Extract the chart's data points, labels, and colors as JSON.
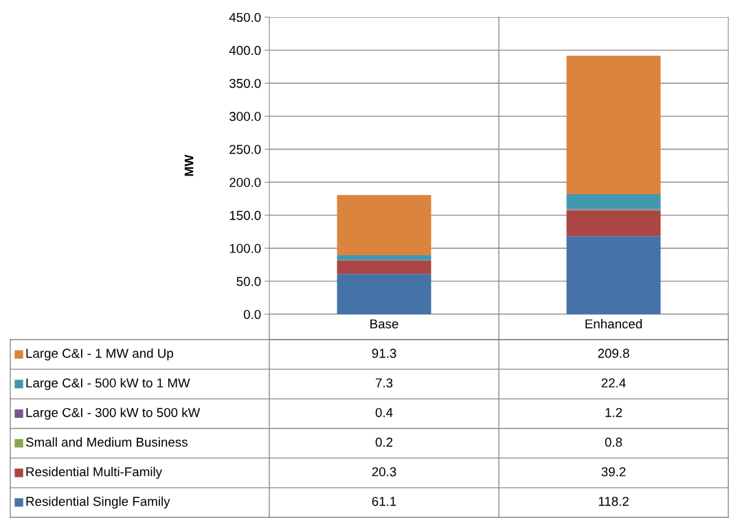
{
  "chart_data": {
    "type": "bar",
    "stacked": true,
    "ylabel": "MW",
    "categories": [
      "Base",
      "Enhanced"
    ],
    "series": [
      {
        "name": "Residential Single Family",
        "color": "#4572a7",
        "values": [
          61.1,
          118.2
        ]
      },
      {
        "name": "Residential Multi-Family",
        "color": "#aa4643",
        "values": [
          20.3,
          39.2
        ]
      },
      {
        "name": "Small and Medium Business",
        "color": "#89a54e",
        "values": [
          0.2,
          0.8
        ]
      },
      {
        "name": "Large C&I - 300 kW to 500 kW",
        "color": "#71588f",
        "values": [
          0.4,
          1.2
        ]
      },
      {
        "name": "Large C&I - 500 kW to 1 MW",
        "color": "#4198af",
        "values": [
          7.3,
          22.4
        ]
      },
      {
        "name": "Large C&I - 1 MW and Up",
        "color": "#db843d",
        "values": [
          91.3,
          209.8
        ]
      }
    ],
    "ylim": [
      0,
      450
    ],
    "yticks": [
      {
        "value": 0,
        "label": "0.0"
      },
      {
        "value": 50,
        "label": "50.0"
      },
      {
        "value": 100,
        "label": "100.0"
      },
      {
        "value": 150,
        "label": "150.0"
      },
      {
        "value": 200,
        "label": "200.0"
      },
      {
        "value": 250,
        "label": "250.0"
      },
      {
        "value": 300,
        "label": "300.0"
      },
      {
        "value": 350,
        "label": "350.0"
      },
      {
        "value": 400,
        "label": "400.0"
      },
      {
        "value": 450,
        "label": "450.0"
      }
    ],
    "grid": "y",
    "legend": "bottom",
    "data_labels": true
  }
}
